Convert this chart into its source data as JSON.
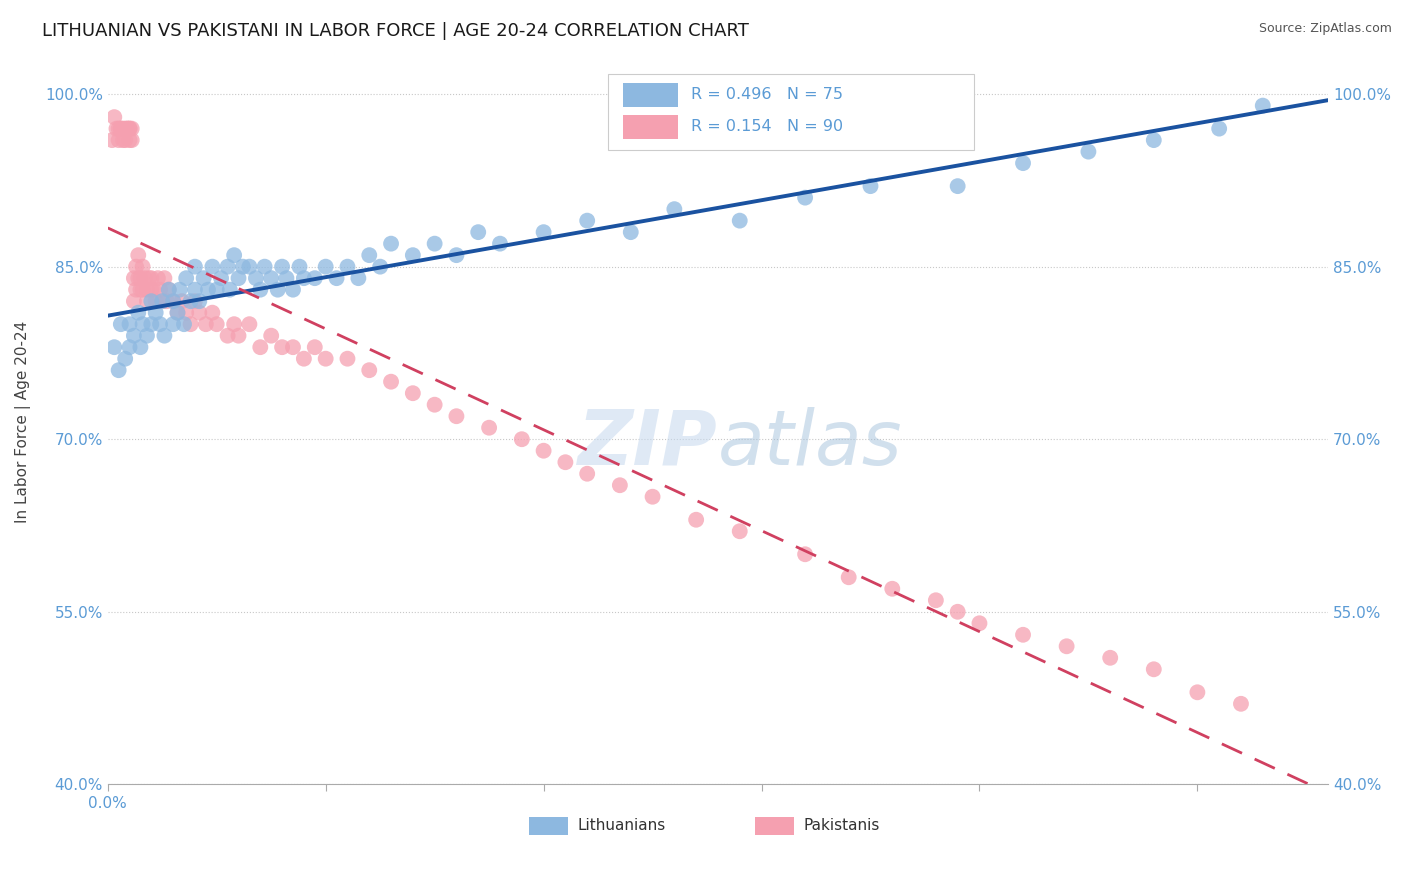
{
  "title": "LITHUANIAN VS PAKISTANI IN LABOR FORCE | AGE 20-24 CORRELATION CHART",
  "source_text": "Source: ZipAtlas.com",
  "ylabel": "In Labor Force | Age 20-24",
  "xlim": [
    0.0,
    0.56
  ],
  "ylim": [
    0.4,
    1.03
  ],
  "yticks": [
    0.4,
    0.55,
    0.7,
    0.85,
    1.0
  ],
  "ytick_labels": [
    "40.0%",
    "55.0%",
    "70.0%",
    "85.0%",
    "100.0%"
  ],
  "watermark": "ZIPatlas",
  "title_fontsize": 13,
  "axis_color": "#5b9bd5",
  "grid_color": "#c8c8c8",
  "lit_color": "#8db8e0",
  "pak_color": "#f5a0b0",
  "lit_line_color": "#1a52a0",
  "pak_line_color": "#d04060",
  "lit_scatter_x": [
    0.003,
    0.005,
    0.006,
    0.008,
    0.01,
    0.01,
    0.012,
    0.014,
    0.015,
    0.016,
    0.018,
    0.02,
    0.02,
    0.022,
    0.024,
    0.025,
    0.026,
    0.028,
    0.03,
    0.03,
    0.032,
    0.033,
    0.035,
    0.036,
    0.038,
    0.04,
    0.04,
    0.042,
    0.044,
    0.046,
    0.048,
    0.05,
    0.052,
    0.055,
    0.056,
    0.058,
    0.06,
    0.062,
    0.065,
    0.068,
    0.07,
    0.072,
    0.075,
    0.078,
    0.08,
    0.082,
    0.085,
    0.088,
    0.09,
    0.095,
    0.1,
    0.105,
    0.11,
    0.115,
    0.12,
    0.125,
    0.13,
    0.14,
    0.15,
    0.16,
    0.17,
    0.18,
    0.2,
    0.22,
    0.24,
    0.26,
    0.29,
    0.32,
    0.35,
    0.39,
    0.42,
    0.45,
    0.48,
    0.51,
    0.53
  ],
  "lit_scatter_y": [
    0.78,
    0.76,
    0.8,
    0.77,
    0.78,
    0.8,
    0.79,
    0.81,
    0.78,
    0.8,
    0.79,
    0.8,
    0.82,
    0.81,
    0.8,
    0.82,
    0.79,
    0.83,
    0.8,
    0.82,
    0.81,
    0.83,
    0.8,
    0.84,
    0.82,
    0.83,
    0.85,
    0.82,
    0.84,
    0.83,
    0.85,
    0.83,
    0.84,
    0.85,
    0.83,
    0.86,
    0.84,
    0.85,
    0.85,
    0.84,
    0.83,
    0.85,
    0.84,
    0.83,
    0.85,
    0.84,
    0.83,
    0.85,
    0.84,
    0.84,
    0.85,
    0.84,
    0.85,
    0.84,
    0.86,
    0.85,
    0.87,
    0.86,
    0.87,
    0.86,
    0.88,
    0.87,
    0.88,
    0.89,
    0.88,
    0.9,
    0.89,
    0.91,
    0.92,
    0.92,
    0.94,
    0.95,
    0.96,
    0.97,
    0.99
  ],
  "pak_scatter_x": [
    0.002,
    0.003,
    0.004,
    0.005,
    0.005,
    0.006,
    0.006,
    0.007,
    0.007,
    0.008,
    0.008,
    0.009,
    0.009,
    0.01,
    0.01,
    0.01,
    0.011,
    0.011,
    0.012,
    0.012,
    0.013,
    0.013,
    0.014,
    0.014,
    0.015,
    0.015,
    0.016,
    0.016,
    0.017,
    0.018,
    0.018,
    0.019,
    0.02,
    0.02,
    0.021,
    0.022,
    0.023,
    0.024,
    0.025,
    0.026,
    0.027,
    0.028,
    0.03,
    0.032,
    0.034,
    0.036,
    0.038,
    0.04,
    0.042,
    0.045,
    0.048,
    0.05,
    0.055,
    0.058,
    0.06,
    0.065,
    0.07,
    0.075,
    0.08,
    0.085,
    0.09,
    0.095,
    0.1,
    0.11,
    0.12,
    0.13,
    0.14,
    0.15,
    0.16,
    0.175,
    0.19,
    0.2,
    0.21,
    0.22,
    0.235,
    0.25,
    0.27,
    0.29,
    0.32,
    0.34,
    0.36,
    0.38,
    0.39,
    0.4,
    0.42,
    0.44,
    0.46,
    0.48,
    0.5,
    0.52
  ],
  "pak_scatter_y": [
    0.96,
    0.98,
    0.97,
    0.97,
    0.96,
    0.97,
    0.97,
    0.96,
    0.97,
    0.97,
    0.96,
    0.97,
    0.97,
    0.97,
    0.97,
    0.96,
    0.96,
    0.97,
    0.82,
    0.84,
    0.85,
    0.83,
    0.84,
    0.86,
    0.83,
    0.84,
    0.85,
    0.83,
    0.84,
    0.83,
    0.82,
    0.84,
    0.83,
    0.84,
    0.83,
    0.82,
    0.84,
    0.83,
    0.82,
    0.84,
    0.82,
    0.83,
    0.82,
    0.81,
    0.82,
    0.81,
    0.8,
    0.82,
    0.81,
    0.8,
    0.81,
    0.8,
    0.79,
    0.8,
    0.79,
    0.8,
    0.78,
    0.79,
    0.78,
    0.78,
    0.77,
    0.78,
    0.77,
    0.77,
    0.76,
    0.75,
    0.74,
    0.73,
    0.72,
    0.71,
    0.7,
    0.69,
    0.68,
    0.67,
    0.66,
    0.65,
    0.63,
    0.62,
    0.6,
    0.58,
    0.57,
    0.56,
    0.55,
    0.54,
    0.53,
    0.52,
    0.51,
    0.5,
    0.48,
    0.47
  ]
}
